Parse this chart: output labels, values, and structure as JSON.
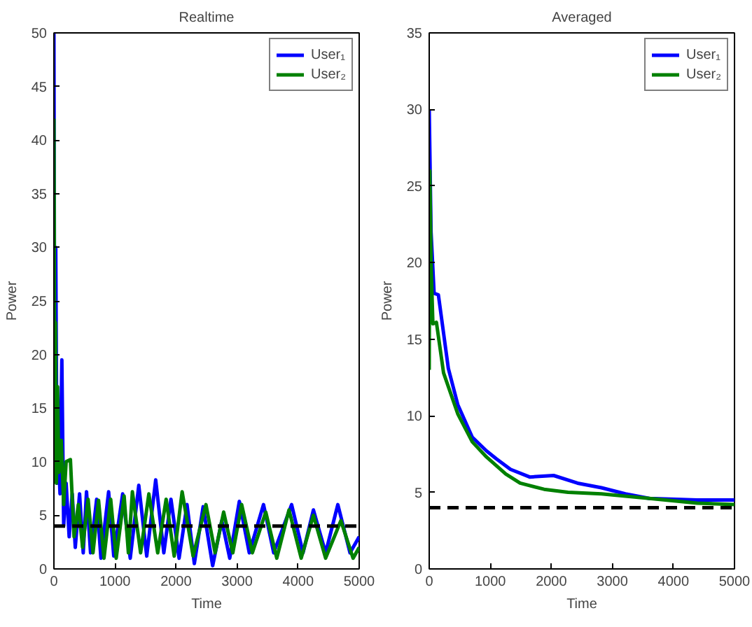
{
  "chart_data": [
    {
      "type": "line",
      "title": "Realtime",
      "xlabel": "Time",
      "ylabel": "Power",
      "xlim": [
        0,
        5000
      ],
      "ylim": [
        0,
        50
      ],
      "xticks": [
        0,
        1000,
        2000,
        3000,
        4000,
        5000
      ],
      "yticks": [
        0,
        5,
        10,
        15,
        20,
        25,
        30,
        35,
        40,
        45,
        50
      ],
      "legend": "top right",
      "series": [
        {
          "name": "User₁",
          "color": "#0000ff",
          "x": [
            0,
            15,
            30,
            50,
            80,
            100,
            130,
            160,
            200,
            250,
            300,
            350,
            420,
            480,
            534,
            600,
            700,
            770,
            896,
            980,
            1126,
            1250,
            1390,
            1520,
            1667,
            1800,
            1917,
            2050,
            2180,
            2300,
            2444,
            2600,
            2750,
            2880,
            3037,
            3200,
            3433,
            3600,
            3893,
            4080,
            4250,
            4450,
            4650,
            4850,
            5000
          ],
          "values": [
            50,
            9,
            30,
            8,
            10,
            7,
            19.5,
            4,
            8,
            3,
            7,
            2,
            7,
            1.5,
            7.2,
            1.5,
            6.5,
            1,
            7.2,
            1.2,
            7,
            1,
            7.8,
            1.2,
            8.3,
            1.5,
            6.5,
            1,
            6,
            0.5,
            5.8,
            0.3,
            4.5,
            1,
            6.3,
            1.5,
            6,
            1.5,
            6,
            1.5,
            5.5,
            1.5,
            6,
            1.5,
            3
          ]
        },
        {
          "name": "User₂",
          "color": "#008000",
          "x": [
            0,
            15,
            25,
            40,
            60,
            80,
            120,
            160,
            200,
            270,
            330,
            400,
            470,
            560,
            640,
            731,
            820,
            930,
            1020,
            1150,
            1220,
            1285,
            1420,
            1555,
            1700,
            1838,
            1970,
            2100,
            2280,
            2490,
            2640,
            2780,
            2930,
            3075,
            3250,
            3470,
            3650,
            3850,
            4050,
            4250,
            4450,
            4700,
            4900,
            5000
          ],
          "values": [
            42,
            12,
            23,
            8,
            17,
            9,
            12,
            6,
            10,
            10.2,
            3,
            6,
            2,
            6.5,
            1.5,
            6.4,
            1,
            6.5,
            1,
            6.8,
            1.5,
            7.2,
            1.5,
            7,
            1.5,
            6.5,
            1.2,
            7.2,
            1.2,
            6,
            1.5,
            5.3,
            1.5,
            6,
            1.5,
            5.3,
            1,
            5.5,
            1,
            5,
            1,
            4.5,
            1,
            2
          ]
        }
      ],
      "ref_lines": [
        {
          "axis": "y",
          "value": 4,
          "color": "#000000",
          "line_style": "dashed"
        }
      ]
    },
    {
      "type": "line",
      "title": "Averaged",
      "xlabel": "Time",
      "ylabel": "Power",
      "xlim": [
        0,
        5000
      ],
      "ylim": [
        0,
        35
      ],
      "xticks": [
        0,
        1000,
        2000,
        3000,
        4000,
        5000
      ],
      "yticks": [
        0,
        5,
        10,
        15,
        20,
        25,
        30,
        35
      ],
      "legend": "top right",
      "series": [
        {
          "name": "User₁",
          "color": "#0000ff",
          "x": [
            0,
            30,
            80,
            150,
            313,
            470,
            705,
            940,
            1097,
            1332,
            1646,
            2038,
            2430,
            2821,
            3213,
            3605,
            4389,
            5000
          ],
          "values": [
            30,
            22,
            18,
            17.9,
            13.1,
            10.7,
            8.6,
            7.7,
            7.2,
            6.5,
            6,
            6.1,
            5.6,
            5.3,
            4.9,
            4.6,
            4.5,
            4.5
          ]
        },
        {
          "name": "User₂",
          "color": "#008000",
          "x": [
            0,
            10,
            30,
            60,
            118,
            235,
            470,
            705,
            940,
            1254,
            1489,
            1881,
            2273,
            2821,
            3605,
            4389,
            5000
          ],
          "values": [
            13,
            26,
            20,
            16,
            16.1,
            12.8,
            10.1,
            8.3,
            7.3,
            6.2,
            5.6,
            5.2,
            5,
            4.9,
            4.6,
            4.3,
            4.2
          ]
        }
      ],
      "ref_lines": [
        {
          "axis": "y",
          "value": 4,
          "color": "#000000",
          "line_style": "dashed"
        }
      ]
    }
  ]
}
